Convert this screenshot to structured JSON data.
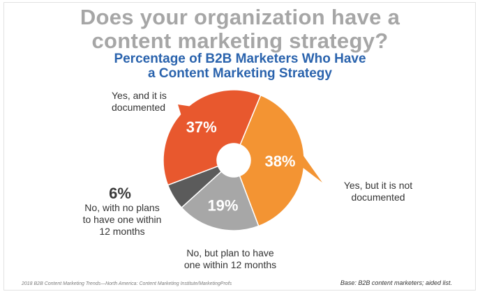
{
  "header": {
    "title_line1": "Does your organization have a",
    "title_line2": "content marketing strategy?",
    "subtitle_line1": "Percentage of B2B Marketers Who Have",
    "subtitle_line2": "a Content Marketing Strategy"
  },
  "chart_data": {
    "type": "pie",
    "title": "Percentage of B2B Marketers Who Have a Content Marketing Strategy",
    "donut": true,
    "slices": [
      {
        "label_lines": [
          "Yes, and it is",
          "documented"
        ],
        "value": 37,
        "value_label": "37%",
        "color": "#e8582e"
      },
      {
        "label_lines": [
          "Yes, but it is not",
          "documented"
        ],
        "value": 38,
        "value_label": "38%",
        "color": "#f39433"
      },
      {
        "label_lines": [
          "No, but plan to have",
          "one within 12 months"
        ],
        "value": 19,
        "value_label": "19%",
        "color": "#a7a7a7"
      },
      {
        "label_lines": [
          "No, with no plans",
          "to have one within",
          "12 months"
        ],
        "value": 6,
        "value_label": "6%",
        "color": "#5b5b5b"
      }
    ]
  },
  "footer": {
    "source": "2018 B2B Content Marketing Trends—North America: Content Marketing Institute/MarketingProfs",
    "base": "Base: B2B content marketers; aided list."
  }
}
